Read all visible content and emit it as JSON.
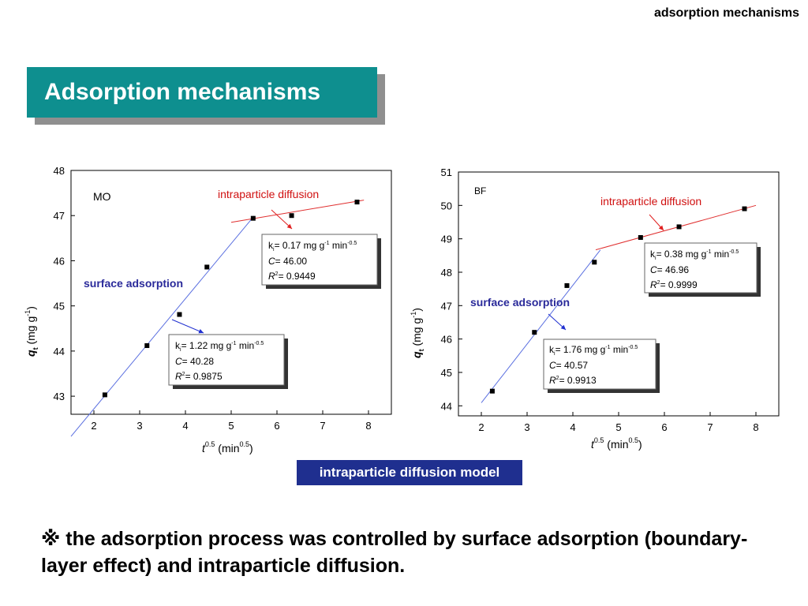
{
  "header": {
    "top_label": "adsorption mechanisms",
    "title": "Adsorption mechanisms"
  },
  "footer": {
    "model_label": "intraparticle diffusion model",
    "conclusion": "※ the adsorption process was controlled by surface adsorption (boundary-layer effect) and intraparticle diffusion."
  },
  "colors": {
    "title_bg": "#0e8f8f",
    "badge_bg": "#1f2f8f",
    "fit1": "#5a6fe0",
    "fit2": "#e03030",
    "surface_text": "#2a2a9a",
    "intra_text": "#d01010"
  },
  "chart_data": [
    {
      "type": "scatter",
      "tag": "MO",
      "xlabel": "t0.5 (min0.5)",
      "ylabel": "qt (mg g-1)",
      "xlim": [
        1.5,
        8.5
      ],
      "ylim": [
        42.6,
        48.0
      ],
      "xticks": [
        2,
        3,
        4,
        5,
        6,
        7,
        8
      ],
      "yticks": [
        43,
        44,
        45,
        46,
        47,
        48
      ],
      "points": [
        [
          2.24,
          43.03
        ],
        [
          3.16,
          44.12
        ],
        [
          3.87,
          44.81
        ],
        [
          4.47,
          45.86
        ],
        [
          5.48,
          46.94
        ],
        [
          6.32,
          47.0
        ],
        [
          7.75,
          47.3
        ]
      ],
      "fits": [
        {
          "k": 1.22,
          "C": 40.28,
          "x": [
            1.5,
            5.5
          ]
        },
        {
          "k": 0.17,
          "C": 46.0,
          "x": [
            5.0,
            7.9
          ]
        }
      ],
      "annotations": {
        "surface_label": "surface adsorption",
        "intra_label": "intraparticle diffusion",
        "box1": {
          "k_prefix": "k",
          "k_sub": "i",
          "k_value": "= 1.22 mg g",
          "k_unit_sup": "-1",
          "k_min": " min",
          "k_min_sup": "-0.5",
          "c_label": "C",
          "c_value": "= 40.28",
          "r_label": "R",
          "r_sup": "2",
          "r_value": "= 0.9875"
        },
        "box2": {
          "k_prefix": "k",
          "k_sub": "i",
          "k_value": "= 0.17 mg g",
          "k_unit_sup": "-1",
          "k_min": " min",
          "k_min_sup": "-0.5",
          "c_label": "C",
          "c_value": "= 46.00",
          "r_label": "R",
          "r_sup": "2",
          "r_value": "= 0.9449"
        }
      }
    },
    {
      "type": "scatter",
      "tag": "BF",
      "xlabel": "t0.5 (min0.5)",
      "ylabel": "qt (mg g-1)",
      "xlim": [
        1.5,
        8.5
      ],
      "ylim": [
        43.7,
        51.0
      ],
      "xticks": [
        2,
        3,
        4,
        5,
        6,
        7,
        8
      ],
      "yticks": [
        44,
        45,
        46,
        47,
        48,
        49,
        50,
        51
      ],
      "points": [
        [
          2.24,
          44.44
        ],
        [
          3.16,
          46.2
        ],
        [
          3.87,
          47.6
        ],
        [
          4.47,
          48.3
        ],
        [
          5.48,
          49.04
        ],
        [
          6.32,
          49.36
        ],
        [
          7.75,
          49.9
        ]
      ],
      "fits": [
        {
          "k": 1.76,
          "C": 40.57,
          "x": [
            2.0,
            4.6
          ]
        },
        {
          "k": 0.38,
          "C": 46.96,
          "x": [
            4.5,
            8.0
          ]
        }
      ],
      "annotations": {
        "surface_label": "surface adsorption",
        "intra_label": "intraparticle diffusion",
        "box1": {
          "k_prefix": "k",
          "k_sub": "i",
          "k_value": "= 1.76 mg g",
          "k_unit_sup": "-1",
          "k_min": " min",
          "k_min_sup": "-0.5",
          "c_label": "C",
          "c_value": "= 40.57",
          "r_label": "R",
          "r_sup": "2",
          "r_value": "= 0.9913"
        },
        "box2": {
          "k_prefix": "k",
          "k_sub": "i",
          "k_value": "= 0.38 mg g",
          "k_unit_sup": "-1",
          "k_min": " min",
          "k_min_sup": "-0.5",
          "c_label": "C",
          "c_value": "= 46.96",
          "r_label": "R",
          "r_sup": "2",
          "r_value": "= 0.9999"
        }
      }
    }
  ]
}
